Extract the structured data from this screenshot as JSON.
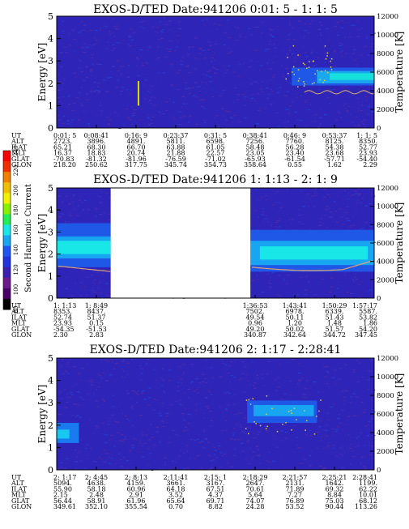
{
  "colorbar": {
    "label": "Second Harmonic Current",
    "ticks": [
      "80",
      "100",
      "120",
      "140",
      "160",
      "180",
      "200",
      "220",
      "240"
    ],
    "colors": [
      "#000000",
      "#4a0066",
      "#6a1a8a",
      "#3a1fb0",
      "#2233dd",
      "#1f55f0",
      "#18a6f2",
      "#19e6e6",
      "#22ee55",
      "#88f000",
      "#f0f000",
      "#f0c000",
      "#f08000",
      "#f03000",
      "#ff0000"
    ]
  },
  "panels": [
    {
      "title": "EXOS-D/TED   Date:941206  0:01: 5 - 1: 1: 5",
      "xy_ylabel_left": "Energy [eV]",
      "xy_ylabel_right": "Temperature [K]",
      "gap": null,
      "feature": "panel1",
      "orbit_labels": [
        "UT",
        "ALT",
        "ILAT",
        "MLT",
        "GLAT",
        "GLON"
      ],
      "orbit_columns": [
        [
          "0:01: 5",
          "2723.",
          "65.21",
          "16.37",
          "-70.83",
          "218.20"
        ],
        [
          "0:08:41",
          "3896.",
          "68.30",
          "18.83",
          "-81.32",
          "250.62"
        ],
        [
          "0:16: 9",
          "4891.",
          "66.70",
          "20.74",
          "-81.96",
          "317.75"
        ],
        [
          "0:23:37",
          "5811.",
          "63.88",
          "21.88",
          "-76.59",
          "345.74"
        ],
        [
          "0:31: 5",
          "6598.",
          "61.05",
          "22.57",
          "-71.02",
          "354.73"
        ],
        [
          "0:38:41",
          "7256.",
          "58.48",
          "23.05",
          "-65.93",
          "358.64"
        ],
        [
          "0:46: 9",
          "7760.",
          "56.28",
          "23.40",
          "-61.54",
          "0.55"
        ],
        [
          "0:53:37",
          "8125.",
          "54.38",
          "23.68",
          "-57.71",
          "1.62"
        ],
        [
          "1: 1: 5",
          "8350.",
          "52.77",
          "23.93",
          "-54.40",
          "2.29"
        ]
      ]
    },
    {
      "title": "EXOS-D/TED   Date:941206  1: 1:13 - 2: 1: 9",
      "xy_ylabel_left": "Energy [eV]",
      "xy_ylabel_right": "Temperature [K]",
      "gap": [
        0.17,
        0.61
      ],
      "feature": "panel2",
      "orbit_labels": [
        "UT",
        "ALT",
        "ILAT",
        "MLT",
        "GLAT",
        "GLON"
      ],
      "orbit_columns": [
        [
          "1: 1:13",
          "8353.",
          "52.74",
          "23.93",
          "-54.35",
          "2.30"
        ],
        [
          "1: 8:49",
          "8437.",
          "51.37",
          "0.15",
          "-51.53",
          "2.83"
        ],
        [
          "",
          "",
          "",
          "",
          "",
          ""
        ],
        [
          "",
          "",
          "",
          "",
          "",
          ""
        ],
        [
          "",
          "",
          "",
          "",
          "",
          ""
        ],
        [
          "1:36:53",
          "7502.",
          "49.54",
          "0.96",
          "49.20",
          "340.87"
        ],
        [
          "1:43:41",
          "6978.",
          "50.11",
          "1.20",
          "50.02",
          "342.64"
        ],
        [
          "1:50:29",
          "6339.",
          "51.43",
          "1.48",
          "51.57",
          "344.72"
        ],
        [
          "1:57:17",
          "5587.",
          "53.82",
          "1.86",
          "54.20",
          "347.45"
        ]
      ]
    },
    {
      "title": "EXOS-D/TED   Date:941206  2: 1:17 - 2:28:41",
      "xy_ylabel_left": "Energy [eV]",
      "xy_ylabel_right": "Temperature [K]",
      "gap": null,
      "feature": "panel3",
      "orbit_labels": [
        "UT",
        "ALT",
        "ILAT",
        "MLT",
        "GLAT",
        "GLON"
      ],
      "orbit_columns": [
        [
          "2: 1:17",
          "5094.",
          "55.90",
          "2.15",
          "56.44",
          "349.61"
        ],
        [
          "2: 4:45",
          "4638.",
          "58.18",
          "2.48",
          "58.91",
          "352.10"
        ],
        [
          "2: 8:13",
          "4159.",
          "60.96",
          "2.91",
          "61.96",
          "355.54"
        ],
        [
          "2:11:41",
          "3661.",
          "64.18",
          "3.52",
          "65.64",
          "0.70"
        ],
        [
          "2:15: 1",
          "3167.",
          "67.51",
          "4.37",
          "69.71",
          "8.82"
        ],
        [
          "2:18:29",
          "2647.",
          "70.61",
          "5.64",
          "74.07",
          "24.28"
        ],
        [
          "2:21:57",
          "2131.",
          "71.89",
          "7.27",
          "76.89",
          "53.52"
        ],
        [
          "2:25:21",
          "1642.",
          "69.32",
          "8.84",
          "75.03",
          "90.44"
        ],
        [
          "2:28:41",
          "1199.",
          "62.22",
          "10.01",
          "68.12",
          "113.26"
        ]
      ]
    }
  ],
  "chart_data": {
    "type": "heatmap",
    "energy_axis": {
      "label": "Energy [eV]",
      "range": [
        0,
        5
      ],
      "ticks": [
        0,
        1,
        2,
        3,
        4,
        5
      ]
    },
    "temperature_axis": {
      "label": "Temperature [K]",
      "range": [
        0,
        12000
      ],
      "ticks": [
        0,
        2000,
        4000,
        6000,
        8000,
        10000,
        12000
      ]
    },
    "color_scale": {
      "label": "Second Harmonic Current",
      "range": [
        80,
        240
      ]
    },
    "panels": [
      {
        "title": "EXOS-D/TED   Date:941206  0:01: 5 - 1: 1: 5",
        "ut_ticks": [
          "0:01: 5",
          "0:08:41",
          "0:16: 9",
          "0:23:37",
          "0:31: 5",
          "0:38:41",
          "0:46: 9",
          "0:53:37",
          "1: 1: 5"
        ]
      },
      {
        "title": "EXOS-D/TED   Date:941206  1: 1:13 - 2: 1: 9",
        "ut_ticks": [
          "1: 1:13",
          "1: 8:49",
          "1:36:53",
          "1:43:41",
          "1:50:29",
          "1:57:17"
        ]
      },
      {
        "title": "EXOS-D/TED   Date:941206  2: 1:17 - 2:28:41",
        "ut_ticks": [
          "2: 1:17",
          "2: 4:45",
          "2: 8:13",
          "2:11:41",
          "2:15: 1",
          "2:18:29",
          "2:21:57",
          "2:25:21",
          "2:28:41"
        ]
      }
    ]
  }
}
